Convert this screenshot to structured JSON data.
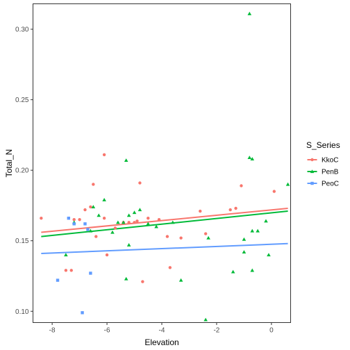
{
  "chart_data": {
    "type": "scatter",
    "xlabel": "Elevation",
    "ylabel": "Total_N",
    "xlim": [
      -8.7,
      0.7
    ],
    "ylim": [
      0.092,
      0.318
    ],
    "x_ticks": [
      -8,
      -6,
      -4,
      -2,
      0
    ],
    "y_ticks": [
      0.1,
      0.15,
      0.2,
      0.25,
      0.3
    ],
    "x_tick_labels": [
      "-8",
      "-6",
      "-4",
      "-2",
      "0"
    ],
    "y_tick_labels": [
      "0.10",
      "0.15",
      "0.20",
      "0.25",
      "0.30"
    ],
    "grid": false,
    "legend": {
      "title": "S_Series",
      "position": "right"
    },
    "series": [
      {
        "name": "KkoC",
        "color": "#F8766D",
        "marker": "circle",
        "points": [
          [
            -8.4,
            0.166
          ],
          [
            -7.2,
            0.165
          ],
          [
            -7.0,
            0.165
          ],
          [
            -6.8,
            0.172
          ],
          [
            -6.6,
            0.174
          ],
          [
            -6.5,
            0.19
          ],
          [
            -6.4,
            0.153
          ],
          [
            -6.1,
            0.211
          ],
          [
            -6.1,
            0.166
          ],
          [
            -6.0,
            0.14
          ],
          [
            -5.7,
            0.159
          ],
          [
            -5.4,
            0.163
          ],
          [
            -5.2,
            0.163
          ],
          [
            -5.0,
            0.163
          ],
          [
            -4.9,
            0.164
          ],
          [
            -4.8,
            0.191
          ],
          [
            -4.7,
            0.121
          ],
          [
            -4.5,
            0.166
          ],
          [
            -4.1,
            0.165
          ],
          [
            -3.8,
            0.153
          ],
          [
            -3.7,
            0.131
          ],
          [
            -3.3,
            0.152
          ],
          [
            -2.6,
            0.171
          ],
          [
            -2.4,
            0.155
          ],
          [
            -1.5,
            0.172
          ],
          [
            -1.3,
            0.173
          ],
          [
            -1.1,
            0.189
          ],
          [
            0.1,
            0.185
          ],
          [
            -7.5,
            0.129
          ],
          [
            -7.3,
            0.129
          ]
        ],
        "trend": [
          [
            -8.4,
            0.156
          ],
          [
            0.6,
            0.173
          ]
        ]
      },
      {
        "name": "PenB",
        "color": "#00BA38",
        "marker": "triangle",
        "points": [
          [
            -7.5,
            0.14
          ],
          [
            -7.2,
            0.163
          ],
          [
            -6.6,
            0.157
          ],
          [
            -6.5,
            0.174
          ],
          [
            -6.3,
            0.168
          ],
          [
            -6.1,
            0.179
          ],
          [
            -5.8,
            0.156
          ],
          [
            -5.6,
            0.163
          ],
          [
            -5.4,
            0.163
          ],
          [
            -5.3,
            0.207
          ],
          [
            -5.2,
            0.168
          ],
          [
            -5.0,
            0.17
          ],
          [
            -5.2,
            0.147
          ],
          [
            -4.8,
            0.172
          ],
          [
            -5.3,
            0.123
          ],
          [
            -4.2,
            0.16
          ],
          [
            -3.6,
            0.163
          ],
          [
            -3.3,
            0.122
          ],
          [
            -2.4,
            0.094
          ],
          [
            -2.3,
            0.152
          ],
          [
            -1.4,
            0.128
          ],
          [
            -1.0,
            0.142
          ],
          [
            -1.0,
            0.151
          ],
          [
            -0.8,
            0.311
          ],
          [
            -0.8,
            0.209
          ],
          [
            -0.7,
            0.208
          ],
          [
            -0.7,
            0.157
          ],
          [
            -0.7,
            0.129
          ],
          [
            -0.5,
            0.157
          ],
          [
            -0.2,
            0.164
          ],
          [
            0.6,
            0.19
          ],
          [
            -0.1,
            0.14
          ],
          [
            -4.5,
            0.162
          ]
        ],
        "trend": [
          [
            -8.4,
            0.153
          ],
          [
            0.6,
            0.171
          ]
        ]
      },
      {
        "name": "PeoC",
        "color": "#619CFF",
        "marker": "square",
        "points": [
          [
            -7.8,
            0.122
          ],
          [
            -7.4,
            0.166
          ],
          [
            -7.2,
            0.162
          ],
          [
            -6.9,
            0.099
          ],
          [
            -6.8,
            0.162
          ],
          [
            -6.6,
            0.127
          ],
          [
            -6.7,
            0.158
          ]
        ],
        "trend": [
          [
            -8.4,
            0.141
          ],
          [
            0.6,
            0.148
          ]
        ]
      }
    ]
  }
}
